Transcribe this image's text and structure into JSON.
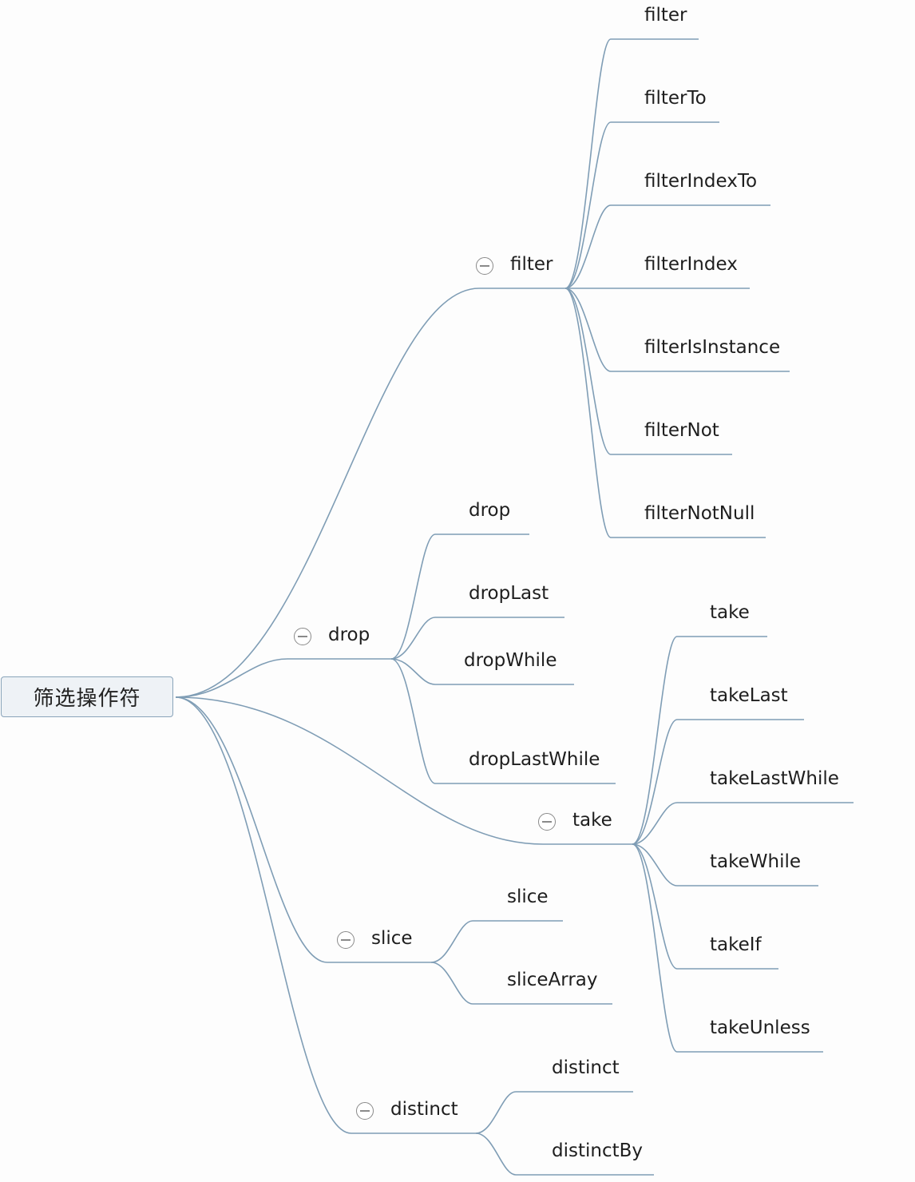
{
  "root": {
    "label": "筛选操作符"
  },
  "branches": [
    {
      "id": "filter",
      "label": "filter",
      "children": [
        "filter",
        "filterTo",
        "filterIndexTo",
        "filterIndex",
        "filterIsInstance",
        "filterNot",
        "filterNotNull"
      ]
    },
    {
      "id": "drop",
      "label": "drop",
      "children": [
        "drop",
        "dropLast",
        "dropWhile",
        "dropLastWhile"
      ]
    },
    {
      "id": "take",
      "label": "take",
      "children": [
        "take",
        "takeLast",
        "takeLastWhile",
        "takeWhile",
        "takeIf",
        "takeUnless"
      ]
    },
    {
      "id": "slice",
      "label": "slice",
      "children": [
        "slice",
        "sliceArray"
      ]
    },
    {
      "id": "distinct",
      "label": "distinct",
      "children": [
        "distinct",
        "distinctBy"
      ]
    }
  ],
  "colors": {
    "line": "#7f9db5",
    "text": "#1e1e1e",
    "toggle": "#8a8a8a",
    "root_bg": "#eef2f6"
  },
  "icons": {
    "collapse": "minus-circle-icon"
  }
}
